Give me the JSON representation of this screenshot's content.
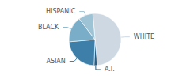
{
  "chart_data": {
    "type": "pie",
    "categories": [
      "WHITE",
      "A.I.",
      "ASIAN",
      "BLACK",
      "HISPANIC"
    ],
    "values": [
      50,
      2,
      23,
      16,
      9
    ],
    "colors": [
      "#cdd8e3",
      "#2b5f82",
      "#3d7fa8",
      "#7aaec8",
      "#9ec3d5"
    ]
  }
}
